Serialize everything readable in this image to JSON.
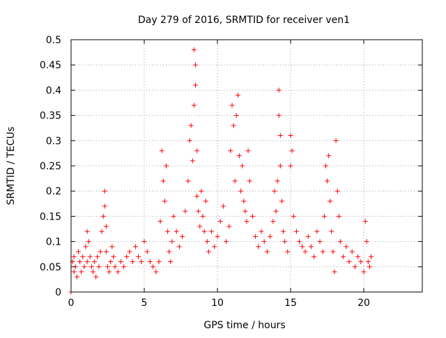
{
  "chart_data": {
    "type": "scatter",
    "title": "Day 279 of 2016, SRMTID for receiver ven1",
    "xlabel": "GPS time / hours",
    "ylabel": "SRMTID / TECUs",
    "xlim": [
      0,
      24
    ],
    "ylim": [
      0,
      0.5
    ],
    "xticks": [
      0,
      5,
      10,
      15,
      20
    ],
    "xtick_labels": [
      "0",
      "5",
      "10",
      "15",
      "20"
    ],
    "yticks": [
      0,
      0.05,
      0.1,
      0.15,
      0.2,
      0.25,
      0.3,
      0.35,
      0.4,
      0.45,
      0.5
    ],
    "ytick_labels": [
      "0",
      "0.05",
      "0.1",
      "0.15",
      "0.2",
      "0.25",
      "0.3",
      "0.35",
      "0.4",
      "0.45",
      "0.5"
    ],
    "grid": true,
    "marker": "+",
    "color": "#ff0000",
    "series": [
      {
        "name": "SRMTID",
        "x": [
          0.0,
          0.1,
          0.2,
          0.2,
          0.3,
          0.4,
          0.5,
          0.6,
          0.7,
          0.8,
          0.9,
          1.0,
          1.1,
          1.1,
          1.2,
          1.3,
          1.4,
          1.5,
          1.6,
          1.7,
          1.8,
          1.9,
          2.0,
          2.1,
          2.2,
          2.3,
          2.3,
          2.4,
          2.4,
          2.5,
          2.6,
          2.7,
          2.8,
          2.9,
          3.0,
          3.2,
          3.4,
          3.6,
          3.8,
          4.0,
          4.2,
          4.4,
          4.6,
          4.8,
          5.0,
          5.2,
          5.4,
          5.6,
          5.8,
          6.0,
          6.1,
          6.2,
          6.3,
          6.4,
          6.5,
          6.6,
          6.7,
          6.8,
          6.9,
          7.0,
          7.2,
          7.4,
          7.6,
          7.8,
          8.0,
          8.1,
          8.2,
          8.3,
          8.4,
          8.4,
          8.5,
          8.5,
          8.6,
          8.6,
          8.7,
          8.8,
          8.9,
          9.0,
          9.1,
          9.2,
          9.3,
          9.4,
          9.6,
          9.8,
          10.0,
          10.2,
          10.4,
          10.6,
          10.8,
          10.9,
          11.0,
          11.1,
          11.2,
          11.3,
          11.4,
          11.5,
          11.6,
          11.7,
          11.8,
          11.9,
          12.0,
          12.1,
          12.2,
          12.4,
          12.6,
          12.8,
          13.0,
          13.2,
          13.4,
          13.6,
          13.8,
          13.9,
          14.0,
          14.1,
          14.2,
          14.2,
          14.3,
          14.3,
          14.4,
          14.5,
          14.6,
          14.8,
          15.0,
          15.0,
          15.1,
          15.2,
          15.4,
          15.6,
          15.8,
          16.0,
          16.2,
          16.4,
          16.6,
          16.8,
          17.0,
          17.2,
          17.3,
          17.4,
          17.5,
          17.6,
          17.7,
          17.8,
          17.9,
          18.0,
          18.1,
          18.2,
          18.3,
          18.4,
          18.6,
          18.8,
          19.0,
          19.2,
          19.4,
          19.6,
          19.8,
          20.0,
          20.1,
          20.2,
          20.3,
          20.4,
          20.5
        ],
        "y": [
          0.0,
          0.06,
          0.04,
          0.07,
          0.05,
          0.03,
          0.08,
          0.06,
          0.04,
          0.07,
          0.05,
          0.09,
          0.06,
          0.12,
          0.1,
          0.07,
          0.05,
          0.04,
          0.06,
          0.03,
          0.07,
          0.05,
          0.08,
          0.12,
          0.15,
          0.2,
          0.17,
          0.13,
          0.08,
          0.05,
          0.04,
          0.06,
          0.09,
          0.07,
          0.05,
          0.04,
          0.06,
          0.05,
          0.07,
          0.08,
          0.06,
          0.09,
          0.07,
          0.06,
          0.1,
          0.08,
          0.06,
          0.05,
          0.04,
          0.06,
          0.14,
          0.28,
          0.22,
          0.18,
          0.25,
          0.12,
          0.08,
          0.06,
          0.1,
          0.15,
          0.12,
          0.09,
          0.11,
          0.16,
          0.22,
          0.3,
          0.33,
          0.26,
          0.37,
          0.48,
          0.45,
          0.41,
          0.28,
          0.19,
          0.16,
          0.13,
          0.2,
          0.15,
          0.12,
          0.18,
          0.1,
          0.08,
          0.12,
          0.09,
          0.11,
          0.14,
          0.17,
          0.1,
          0.13,
          0.28,
          0.37,
          0.33,
          0.22,
          0.35,
          0.39,
          0.27,
          0.2,
          0.25,
          0.18,
          0.16,
          0.14,
          0.28,
          0.22,
          0.15,
          0.11,
          0.09,
          0.12,
          0.1,
          0.08,
          0.11,
          0.14,
          0.2,
          0.16,
          0.22,
          0.4,
          0.35,
          0.31,
          0.25,
          0.18,
          0.12,
          0.1,
          0.08,
          0.31,
          0.25,
          0.28,
          0.15,
          0.12,
          0.1,
          0.09,
          0.08,
          0.11,
          0.09,
          0.07,
          0.12,
          0.1,
          0.08,
          0.15,
          0.25,
          0.22,
          0.27,
          0.18,
          0.12,
          0.08,
          0.04,
          0.3,
          0.2,
          0.15,
          0.1,
          0.07,
          0.09,
          0.06,
          0.08,
          0.05,
          0.07,
          0.06,
          0.04,
          0.14,
          0.1,
          0.06,
          0.05,
          0.07
        ]
      }
    ]
  }
}
